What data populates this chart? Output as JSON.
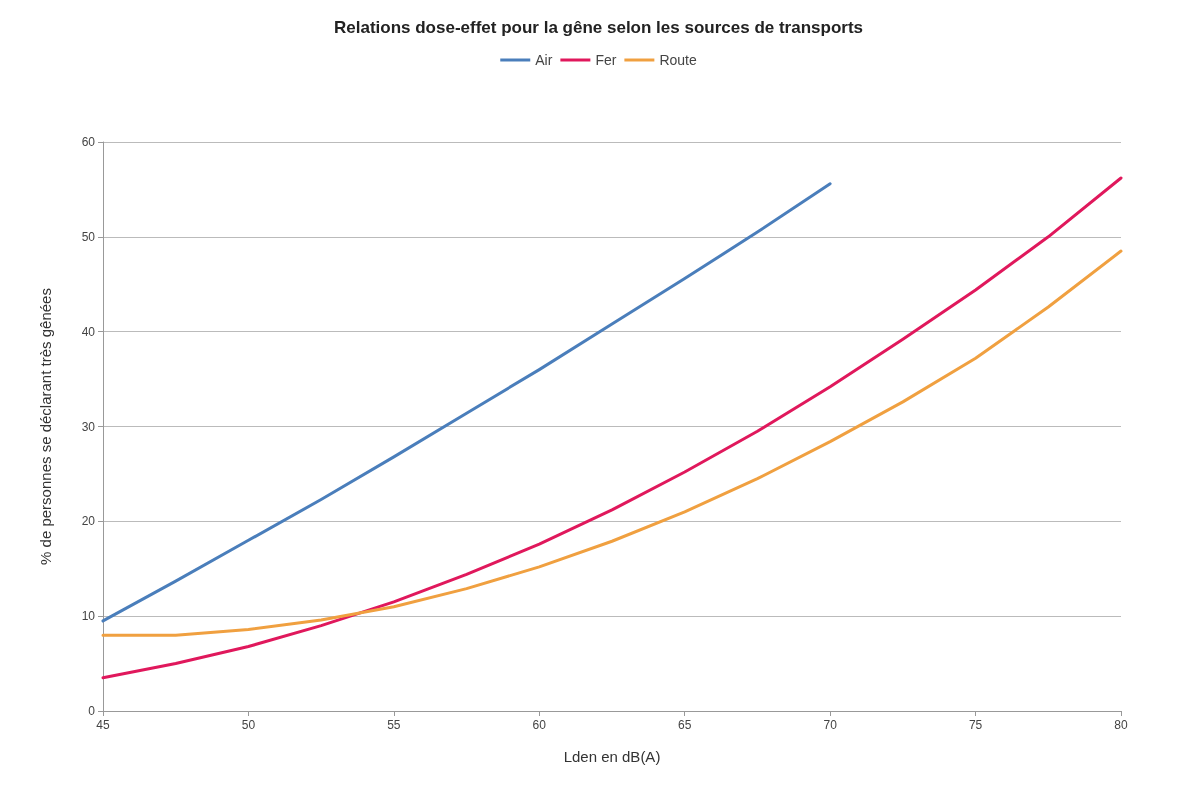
{
  "chart_data": {
    "type": "line",
    "title": "Relations dose-effet pour la gêne selon les sources de transports",
    "xlabel": "Lden en dB(A)",
    "ylabel": "% de personnes se déclarant très gênées",
    "xlim": [
      45,
      80
    ],
    "xticks": [
      45,
      50,
      55,
      60,
      65,
      70,
      75,
      80
    ],
    "ylim": [
      0,
      60
    ],
    "yticks": [
      0,
      10,
      20,
      30,
      40,
      50,
      60
    ],
    "grid": "y",
    "legend": "top",
    "marker": "none",
    "line_style": "solid",
    "series": [
      {
        "name": "Air",
        "color": "#4a7ebb",
        "x": [
          45,
          47.5,
          50,
          52.5,
          55,
          57.5,
          60,
          62.5,
          65,
          67.5,
          70
        ],
        "values": [
          9.5,
          13.7,
          18,
          22.3,
          26.8,
          31.4,
          36,
          40.8,
          45.6,
          50.5,
          55.6
        ]
      },
      {
        "name": "Fer",
        "color": "#e0185c",
        "x": [
          45,
          47.5,
          50,
          52.5,
          55,
          57.5,
          60,
          62.5,
          65,
          67.5,
          70,
          72.5,
          75,
          77.5,
          80
        ],
        "values": [
          3.5,
          5,
          6.8,
          9,
          11.5,
          14.4,
          17.6,
          21.2,
          25.2,
          29.5,
          34.2,
          39.2,
          44.4,
          50,
          56.2
        ]
      },
      {
        "name": "Route",
        "color": "#f0a040",
        "x": [
          45,
          47.5,
          50,
          52.5,
          55,
          57.5,
          60,
          62.5,
          65,
          67.5,
          70,
          72.5,
          75,
          77.5,
          80
        ],
        "values": [
          8,
          8,
          8.6,
          9.6,
          11,
          12.9,
          15.2,
          17.9,
          21,
          24.5,
          28.4,
          32.6,
          37.2,
          42.6,
          48.5
        ]
      }
    ]
  }
}
